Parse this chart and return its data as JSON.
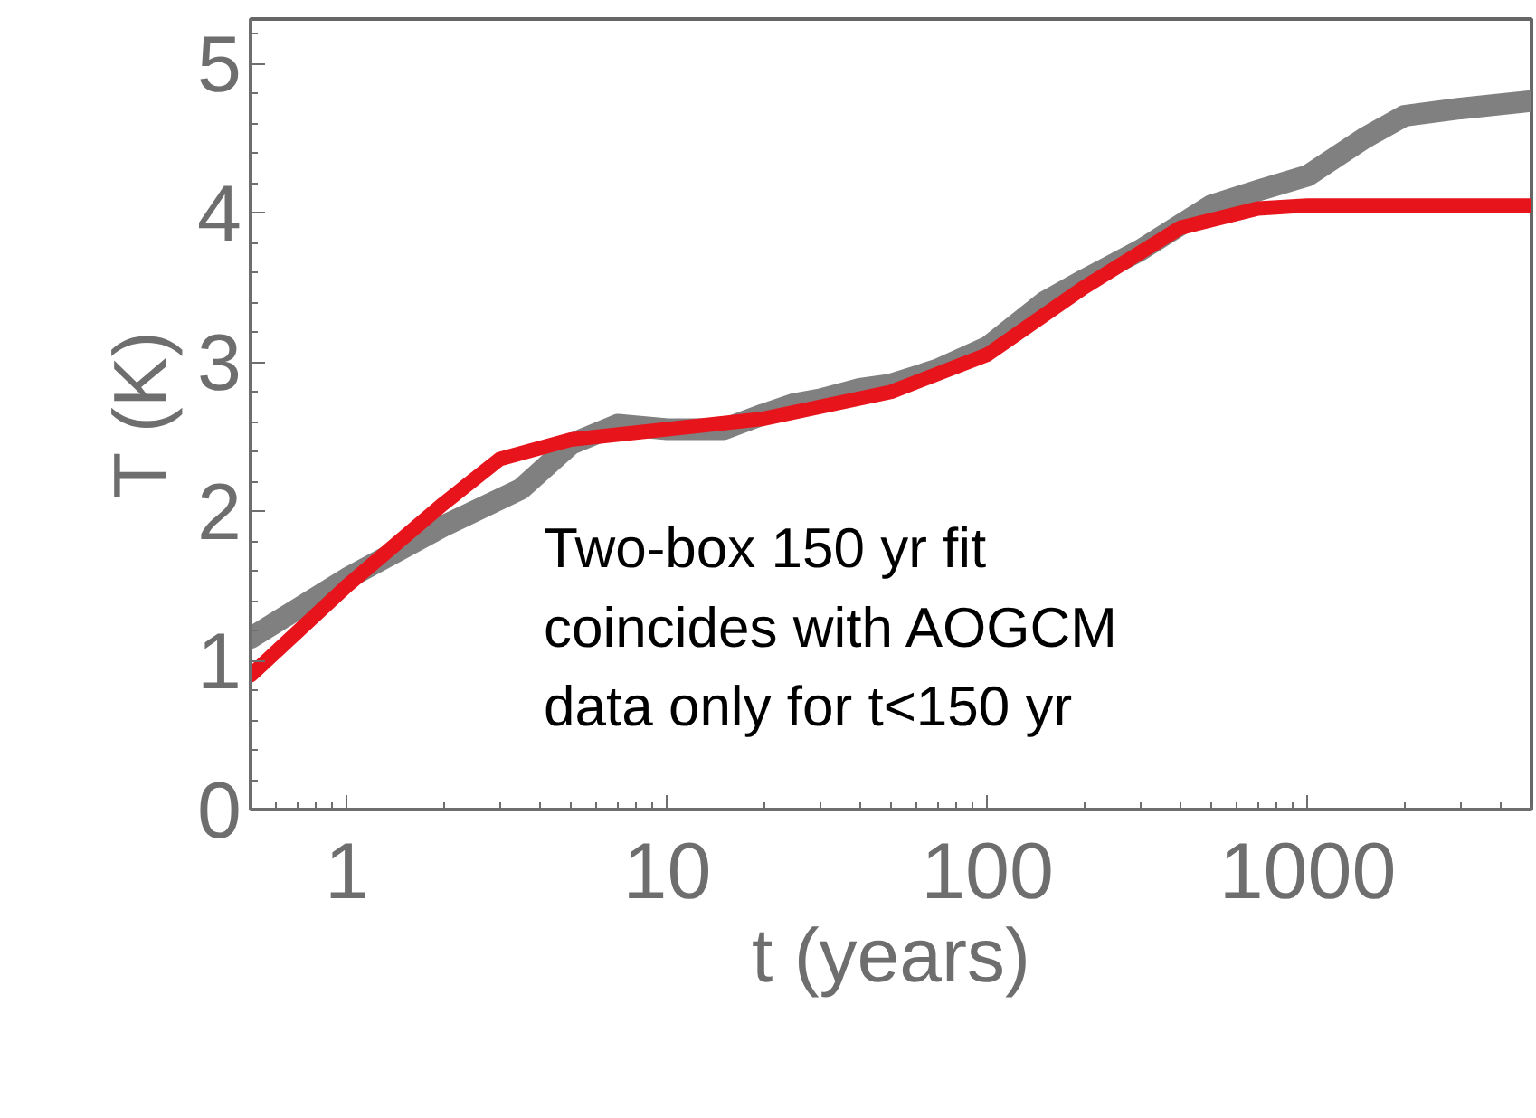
{
  "chart_data": {
    "type": "line",
    "xlabel": "t (years)",
    "ylabel": "T (K)",
    "log": "x",
    "grid": false,
    "xlim": [
      0.5,
      5000
    ],
    "xticks": [
      1,
      10,
      100,
      1000
    ],
    "ylim": [
      0,
      5.3
    ],
    "yticks": [
      0,
      1,
      2,
      3,
      4,
      5
    ],
    "annotations": [
      "Two-box 150 yr fit\ncoincides with AOGCM\ndata only for t<150 yr"
    ],
    "series": [
      {
        "color": "#808080",
        "x": [
          0.5,
          1,
          2,
          3.5,
          5,
          7,
          10,
          15,
          20,
          25,
          30,
          40,
          50,
          70,
          100,
          150,
          200,
          300,
          500,
          700,
          1000,
          1500,
          2000,
          3000,
          5000
        ],
        "values": [
          1.15,
          1.55,
          1.9,
          2.15,
          2.45,
          2.58,
          2.55,
          2.55,
          2.65,
          2.72,
          2.75,
          2.82,
          2.85,
          2.95,
          3.1,
          3.4,
          3.55,
          3.75,
          4.05,
          4.15,
          4.25,
          4.5,
          4.65,
          4.7,
          4.75
        ]
      },
      {
        "color": "#e8141c",
        "x": [
          0.5,
          1,
          2,
          3,
          5,
          10,
          20,
          50,
          100,
          200,
          400,
          700,
          1000,
          5000
        ],
        "values": [
          0.9,
          1.5,
          2.05,
          2.35,
          2.48,
          2.55,
          2.62,
          2.8,
          3.05,
          3.5,
          3.9,
          4.03,
          4.05,
          4.05
        ]
      }
    ]
  }
}
